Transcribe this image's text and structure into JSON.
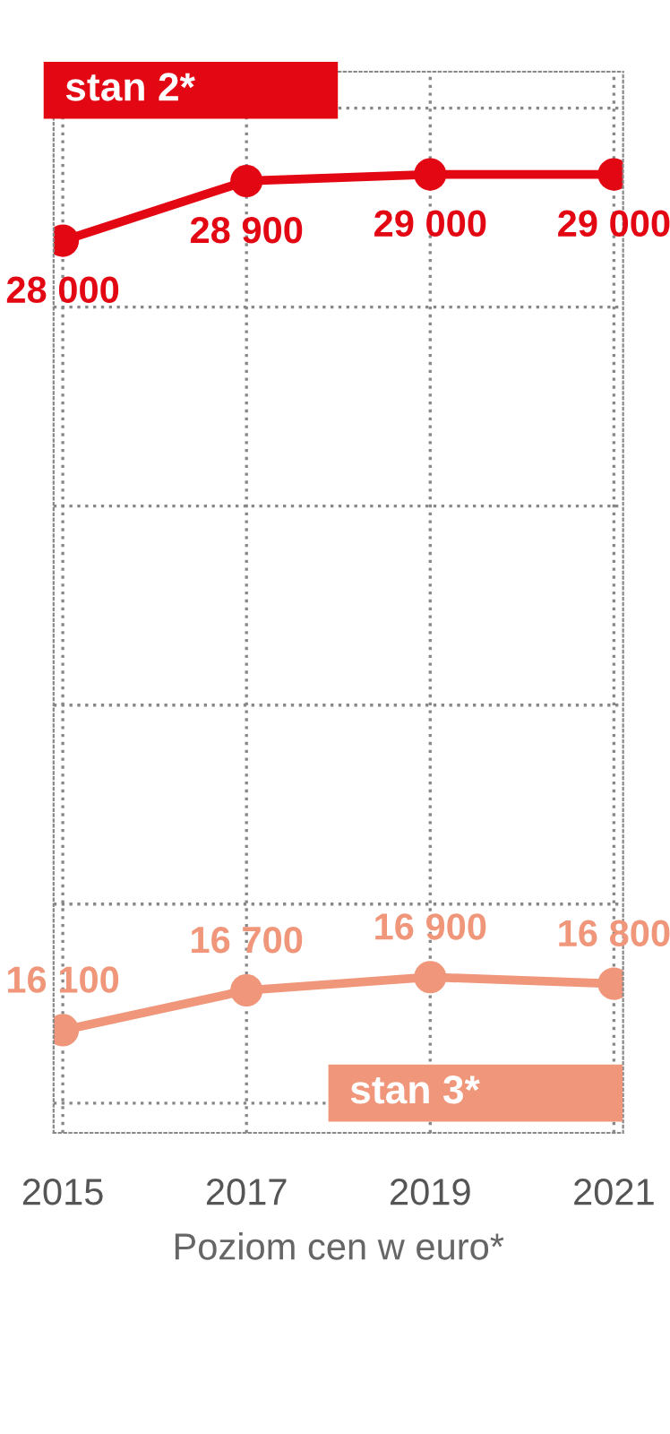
{
  "chart_data": {
    "type": "line",
    "categories": [
      "2015",
      "2017",
      "2019",
      "2021"
    ],
    "series": [
      {
        "name": "stan 2*",
        "color": "#e30613",
        "values": [
          28000,
          28900,
          29000,
          29000
        ],
        "value_labels": [
          "28 000",
          "28 900",
          "29 000",
          "29 000"
        ]
      },
      {
        "name": "stan 3*",
        "color": "#f0967a",
        "values": [
          16100,
          16700,
          16900,
          16800
        ],
        "value_labels": [
          "16 100",
          "16 700",
          "16 900",
          "16 800"
        ]
      }
    ],
    "xlabel": "Poziom cen w euro*",
    "tick_labels": "x",
    "grid": true,
    "marker": "circle",
    "line_style": "solid",
    "legend": false
  }
}
